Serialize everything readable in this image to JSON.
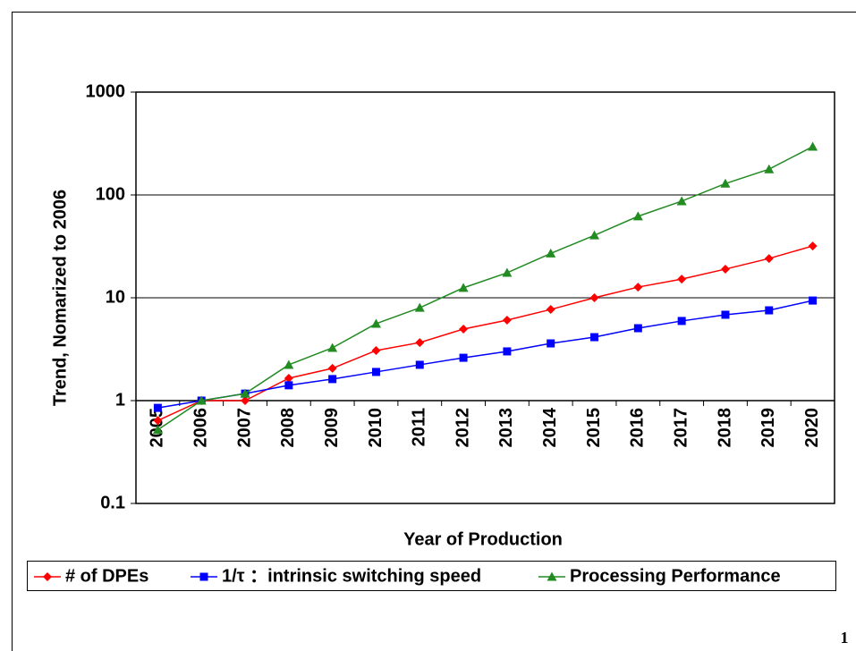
{
  "chart_data": {
    "type": "line",
    "y_label": "Trend, Nomarized to 2006",
    "x_label": "Year of Production",
    "categories": [
      "2005",
      "2006",
      "2007",
      "2008",
      "2009",
      "2010",
      "2011",
      "2012",
      "2013",
      "2014",
      "2015",
      "2016",
      "2017",
      "2018",
      "2019",
      "2020"
    ],
    "log_scale": true,
    "ylim": [
      0.1,
      1000
    ],
    "yticks": [
      0.1,
      1,
      10,
      100,
      1000
    ],
    "grid": true,
    "x_axis_crosses": 1,
    "legend": "bottom",
    "series": [
      {
        "name": "# of DPEs",
        "color": "#ff0000",
        "marker": "diamond",
        "values": [
          0.64,
          1,
          1,
          1.65,
          2.06,
          3.07,
          3.67,
          4.96,
          6.06,
          7.7,
          10,
          12.7,
          15.2,
          19.0,
          24.1,
          31.9
        ]
      },
      {
        "name": "1/τ ：intrinsic switching speed",
        "color": "#0000ff",
        "marker": "square",
        "values": [
          0.85,
          1,
          1.17,
          1.41,
          1.62,
          1.9,
          2.23,
          2.61,
          3.01,
          3.6,
          4.14,
          5.06,
          5.95,
          6.84,
          7.55,
          9.4
        ]
      },
      {
        "name": "Processing Performance",
        "color": "#228b22",
        "marker": "triangle",
        "values": [
          0.52,
          1,
          1.17,
          2.23,
          3.26,
          5.6,
          8.0,
          12.5,
          17.5,
          27,
          40.5,
          62,
          87,
          129,
          178,
          295
        ]
      }
    ]
  },
  "page_number": "1"
}
